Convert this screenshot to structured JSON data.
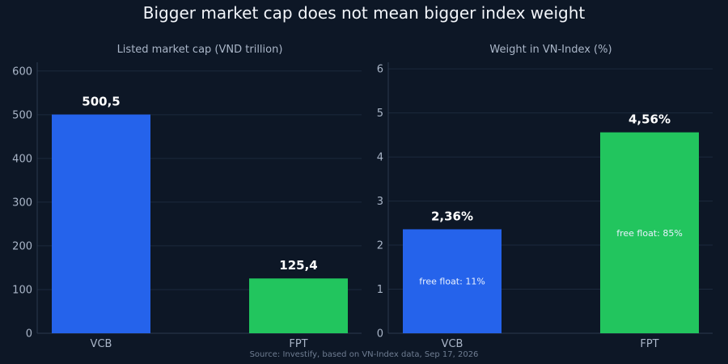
{
  "title": "Bigger market cap does not mean bigger index weight",
  "source": "Source: Investify, based on VN-Index data, Sep 17, 2026",
  "colors": {
    "VCB": "#2563eb",
    "FPT": "#22c55e"
  },
  "chart_data": [
    {
      "type": "bar",
      "title": "Listed market cap (VND trillion)",
      "categories": [
        "VCB",
        "FPT"
      ],
      "values": [
        500.5,
        125.4
      ],
      "value_labels": [
        "500,5",
        "125,4"
      ],
      "ylim": [
        0,
        620
      ],
      "yticks": [
        0,
        100,
        200,
        300,
        400,
        500,
        600
      ],
      "grid": true
    },
    {
      "type": "bar",
      "title": "Weight in VN-Index (%)",
      "categories": [
        "VCB",
        "FPT"
      ],
      "values": [
        2.36,
        4.56
      ],
      "value_labels": [
        "2,36%",
        "4,56%"
      ],
      "bar_annotations": [
        "free float: 11%",
        "free float: 85%"
      ],
      "ylim": [
        0,
        6.15
      ],
      "yticks": [
        0,
        1,
        2,
        3,
        4,
        5,
        6
      ],
      "grid": true
    }
  ]
}
